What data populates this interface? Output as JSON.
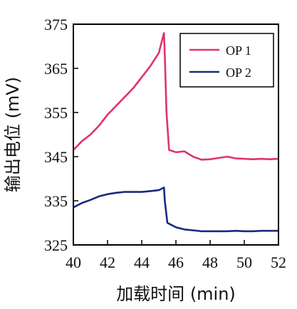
{
  "chart_data": {
    "type": "line",
    "xlabel": "加载时间 (min)",
    "ylabel": "输出电位 (mV)",
    "xlim": [
      40,
      52
    ],
    "ylim": [
      325,
      375
    ],
    "xticks": [
      "40",
      "42",
      "44",
      "46",
      "48",
      "50",
      "52"
    ],
    "yticks": [
      "325",
      "335",
      "345",
      "355",
      "365",
      "375"
    ],
    "grid": false,
    "legend_position": "top-right",
    "series": [
      {
        "name": "OP 1",
        "color": "#e0336b",
        "x": [
          40.0,
          40.5,
          41.0,
          41.5,
          42.0,
          42.5,
          43.0,
          43.5,
          44.0,
          44.5,
          45.0,
          45.3,
          45.35,
          45.45,
          45.6,
          46.0,
          46.5,
          47.0,
          47.5,
          48.0,
          48.5,
          49.0,
          49.5,
          50.0,
          50.5,
          51.0,
          51.5,
          52.0
        ],
        "y": [
          346.5,
          348.5,
          350.0,
          352.0,
          354.5,
          356.5,
          358.5,
          360.5,
          363.0,
          365.5,
          368.5,
          373.0,
          368.0,
          355.0,
          346.5,
          346.0,
          346.2,
          345.0,
          344.3,
          344.4,
          344.7,
          345.0,
          344.6,
          344.5,
          344.4,
          344.5,
          344.4,
          344.5
        ]
      },
      {
        "name": "OP 2",
        "color": "#1a2a80",
        "x": [
          40.0,
          40.5,
          41.0,
          41.5,
          42.0,
          42.5,
          43.0,
          43.5,
          44.0,
          44.5,
          45.0,
          45.3,
          45.35,
          45.5,
          46.0,
          46.5,
          47.0,
          47.5,
          48.0,
          48.5,
          49.0,
          49.5,
          50.0,
          50.5,
          51.0,
          51.5,
          52.0
        ],
        "y": [
          333.5,
          334.5,
          335.2,
          336.0,
          336.5,
          336.8,
          337.0,
          337.0,
          337.0,
          337.2,
          337.4,
          338.0,
          335.0,
          330.0,
          329.0,
          328.5,
          328.3,
          328.1,
          328.1,
          328.1,
          328.1,
          328.2,
          328.1,
          328.1,
          328.2,
          328.2,
          328.2
        ]
      }
    ]
  }
}
